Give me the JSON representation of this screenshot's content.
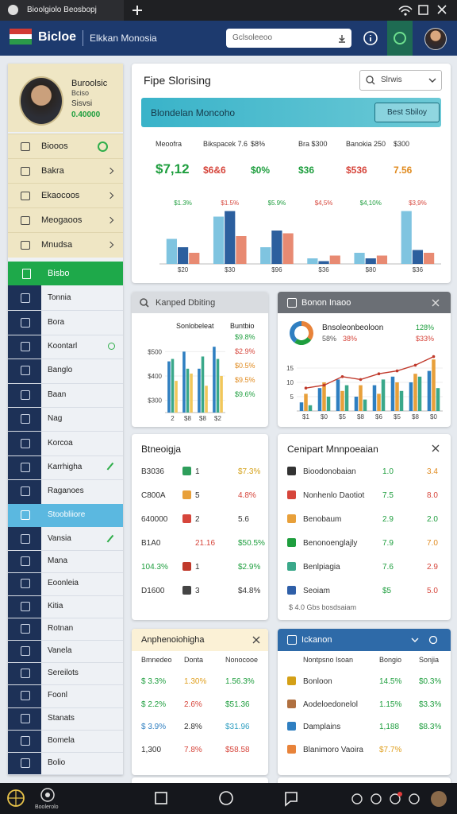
{
  "browser": {
    "tab": "Bioolgiolo Beosbopj"
  },
  "header": {
    "brand": "Bicloe",
    "subtitle": "Elkkan Monosia",
    "search": "Gclsoleeoo"
  },
  "sidebar": {
    "profile": {
      "name": "Buroolsic",
      "role": "Bciso",
      "team": "Sisvsi",
      "score": "0.40000"
    },
    "menu": [
      "Biooos",
      "Bakra",
      "Ekaocoos",
      "Meogaoos",
      "Mnudsa"
    ],
    "active": "Bisbo",
    "nav": [
      "Tonnia",
      "Bora",
      "Koontarl",
      "Banglo",
      "Baan",
      "Nag",
      "Korcoa",
      "Karrhigha",
      "Raganoes"
    ],
    "selected": "Stoobliiore",
    "nav2": [
      "Vansia",
      "Mana",
      "Eoonleia",
      "Kitia",
      "Rotnan",
      "Vanela",
      "Sereilots",
      "Foonl",
      "Stanats",
      "Bomela",
      "Bolio"
    ]
  },
  "overview": {
    "title": "Fipe Slorising",
    "select": "Slrwis",
    "banner": "Blondelan Moncoho",
    "button": "Best Sbiloy",
    "kpis": [
      {
        "label": "Meoofra",
        "value": "$7,12",
        "color": "#1e9e3e"
      },
      {
        "label": "Bikspacek 7.6",
        "value": "$6&6",
        "color": "#d6453b"
      },
      {
        "label": "$8%",
        "value": "$0%",
        "color": "#1e9e3e"
      },
      {
        "label": "Bra $300",
        "value": "$36",
        "color": "#1e9e3e"
      },
      {
        "label": "Banokia 250",
        "value": "$536",
        "color": "#d6453b"
      },
      {
        "label": "$300",
        "value": "7.56",
        "color": "#e08a1e"
      }
    ],
    "chart": {
      "type": "bar",
      "categories": [
        "$20",
        "$30",
        "$96",
        "$36",
        "$80",
        "$36"
      ],
      "annotations": [
        "$1.3%",
        "$1.5%",
        "$5.9%",
        "$4,5%",
        "$4,10%",
        "$3,9%"
      ],
      "ylim": [
        0,
        100
      ],
      "series": [
        {
          "color": "#7fc4e0",
          "values": [
            45,
            85,
            30,
            10,
            20,
            95
          ]
        },
        {
          "color": "#2c5f9e",
          "values": [
            30,
            95,
            60,
            5,
            10,
            25
          ]
        },
        {
          "color": "#e88a72",
          "values": [
            20,
            50,
            55,
            15,
            15,
            20
          ]
        }
      ]
    }
  },
  "budget": {
    "title": "Kanped Dbiting",
    "legend": [
      "Sonlobeleat",
      "Buntbio"
    ],
    "chart": {
      "type": "bar",
      "categories": [
        "2",
        "$8",
        "$8",
        "$2"
      ],
      "ylim": [
        250,
        550
      ],
      "yticks": [
        {
          "value": 300,
          "label": "$300"
        },
        {
          "value": 400,
          "label": "$400"
        },
        {
          "value": 500,
          "label": "$500"
        }
      ],
      "series": [
        {
          "color": "#2f7fc1",
          "values": [
            460,
            500,
            430,
            520
          ]
        },
        {
          "color": "#3aa88a",
          "values": [
            470,
            430,
            480,
            470
          ]
        },
        {
          "color": "#f1c75b",
          "values": [
            380,
            410,
            360,
            400
          ]
        }
      ]
    },
    "notes": [
      {
        "text": "$9.8%",
        "color": "#1e9e3e"
      },
      {
        "text": "$2.9%",
        "color": "#d6453b"
      },
      {
        "text": "$0.5%",
        "color": "#e08a1e"
      },
      {
        "text": "$9.5%",
        "color": "#e08a1e"
      },
      {
        "text": "$9.6%",
        "color": "#1e9e3e"
      }
    ]
  },
  "income": {
    "title": "Bonon Inaoo",
    "label": "Bnsoleonbeoloon",
    "shares": [
      "58%",
      "38%"
    ],
    "rate": "128%",
    "rate2": "$33%",
    "donut": {
      "values": [
        35,
        25,
        40
      ],
      "colors": [
        "#e8833a",
        "#1e9e3e",
        "#2f7fc1"
      ]
    },
    "chart": {
      "type": "bar",
      "categories": [
        "$1",
        "$0",
        "$5",
        "$8",
        "$6",
        "$5",
        "$8",
        "$0"
      ],
      "ylim": [
        0,
        20
      ],
      "yticks": [
        5,
        10,
        15
      ],
      "series": [
        {
          "color": "#2f7fc1",
          "values": [
            3,
            8,
            11,
            5,
            9,
            12,
            10,
            14
          ]
        },
        {
          "color": "#e8a03a",
          "values": [
            6,
            10,
            7,
            9,
            6,
            10,
            13,
            18
          ]
        },
        {
          "color": "#3aa88a",
          "values": [
            2,
            5,
            9,
            4,
            11,
            7,
            12,
            8
          ]
        },
        {
          "type": "line",
          "color": "#c0392b",
          "values": [
            8,
            9,
            12,
            11,
            13,
            14,
            16,
            19
          ]
        }
      ]
    }
  },
  "targets": {
    "title": "Btneoigja",
    "rows": [
      {
        "cells": [
          "B3036",
          "1",
          "$7.3%"
        ],
        "colors": [
          "#333",
          "#333",
          "#d4a017"
        ],
        "icon": "#2e9e5b"
      },
      {
        "cells": [
          "C800A",
          "5",
          "4.8%"
        ],
        "colors": [
          "#333",
          "#333",
          "#d6453b"
        ],
        "icon": "#e8a03a"
      },
      {
        "cells": [
          "640000",
          "2",
          "5.6"
        ],
        "colors": [
          "#333",
          "#333",
          "#333"
        ],
        "icon": "#d6453b"
      },
      {
        "cells": [
          "B1A0",
          "21.16",
          "$50.5%"
        ],
        "colors": [
          "#333",
          "#d6453b",
          "#1e9e3e"
        ]
      },
      {
        "cells": [
          "104.3%",
          "1",
          "$2.9%"
        ],
        "colors": [
          "#1e9e3e",
          "#333",
          "#1e9e3e"
        ],
        "icon": "#c0392b"
      },
      {
        "cells": [
          "D1600",
          "3",
          "$4.8%"
        ],
        "colors": [
          "#333",
          "#333",
          "#333"
        ],
        "icon": "#444"
      }
    ]
  },
  "comparison": {
    "title": "Cenipart Mnnpoeaian",
    "footer": "$ 4.0 Gbs bosdsaiam",
    "rows": [
      {
        "cells": [
          "Bioodonobaian",
          "1.0",
          "3.4"
        ],
        "colors": [
          "#333",
          "#1e9e3e",
          "#e08a1e"
        ],
        "icon": "#333"
      },
      {
        "cells": [
          "Nonhenlo Daotiot",
          "7.5",
          "8.0"
        ],
        "colors": [
          "#333",
          "#1e9e3e",
          "#d6453b"
        ],
        "icon": "#d6453b"
      },
      {
        "cells": [
          "Benobaum",
          "2.9",
          "2.0"
        ],
        "colors": [
          "#333",
          "#1e9e3e",
          "#1e9e3e"
        ],
        "icon": "#e8a03a"
      },
      {
        "cells": [
          "Benonoenglajly",
          "7.9",
          "7.0"
        ],
        "colors": [
          "#333",
          "#1e9e3e",
          "#e08a1e"
        ],
        "icon": "#1e9e3e"
      },
      {
        "cells": [
          "Benlpiagia",
          "7.6",
          "2.9"
        ],
        "colors": [
          "#333",
          "#1e9e3e",
          "#d6453b"
        ],
        "icon": "#3aa88a"
      },
      {
        "cells": [
          "Seoiam",
          "$5",
          "5.0"
        ],
        "colors": [
          "#333",
          "#1e9e3e",
          "#d6453b"
        ],
        "icon": "#2f5fa8"
      }
    ]
  },
  "allocation": {
    "title": "Anphenoiohigha",
    "columns": [
      "Bmnedeo",
      "Donta",
      "Nonocooe"
    ],
    "rows": [
      {
        "cells": [
          "$ 3.3%",
          "1.30%",
          "1.56.3%"
        ],
        "colors": [
          "#1e9e3e",
          "#e0a020",
          "#1e9e3e"
        ]
      },
      {
        "cells": [
          "$ 2.2%",
          "2.6%",
          "$51.36"
        ],
        "colors": [
          "#1e9e3e",
          "#d6453b",
          "#1e9e3e"
        ]
      },
      {
        "cells": [
          "$ 3.9%",
          "2.8%",
          "$31.96"
        ],
        "colors": [
          "#2f7fc1",
          "#333",
          "#2f9fc1"
        ]
      },
      {
        "cells": [
          "1,300",
          "7.8%",
          "$58.58"
        ],
        "colors": [
          "#333",
          "#d6453b",
          "#d6453b"
        ]
      }
    ]
  },
  "accounts": {
    "title": "Ickanon",
    "columns": [
      "Nontpsno Isoan",
      "Bongio",
      "Sonjia"
    ],
    "rows": [
      {
        "cells": [
          "Bonloon",
          "14.5%",
          "$0.3%"
        ],
        "colors": [
          "#333",
          "#1e9e3e",
          "#1e9e3e"
        ],
        "icon": "#d4a017"
      },
      {
        "cells": [
          "Aodeloedonelol",
          "1.15%",
          "$3.3%"
        ],
        "colors": [
          "#333",
          "#1e9e3e",
          "#1e9e3e"
        ],
        "icon": "#b07040"
      },
      {
        "cells": [
          "Damplains",
          "1,188",
          "$8.3%"
        ],
        "colors": [
          "#333",
          "#1e9e3e",
          "#1e9e3e"
        ],
        "icon": "#2f7fc1"
      },
      {
        "cells": [
          "Blanimoro Vaoira",
          "$7.7%"
        ],
        "colors": [
          "#333",
          "#e0a020"
        ],
        "icon": "#e8833a"
      }
    ]
  },
  "taskbar": {
    "label": "Boolerolo"
  }
}
